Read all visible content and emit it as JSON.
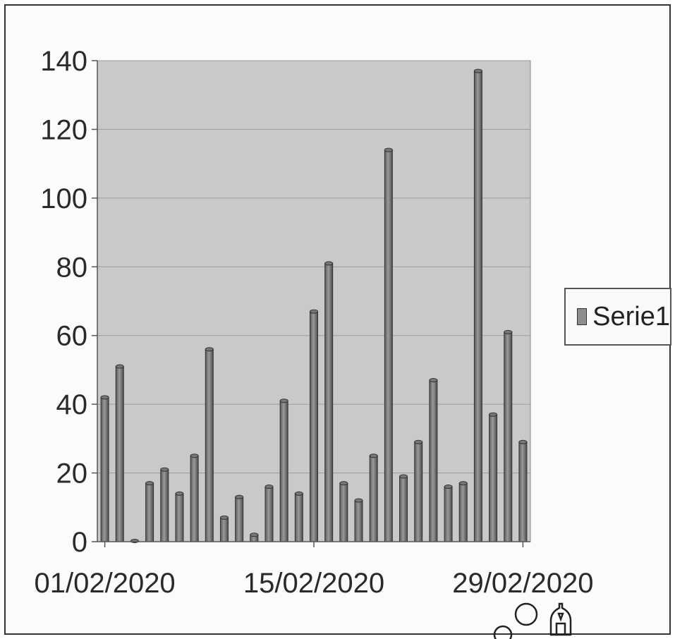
{
  "chart_data": {
    "type": "bar",
    "x": [
      "01/02/2020",
      "02/02/2020",
      "03/02/2020",
      "04/02/2020",
      "05/02/2020",
      "06/02/2020",
      "07/02/2020",
      "08/02/2020",
      "09/02/2020",
      "10/02/2020",
      "11/02/2020",
      "12/02/2020",
      "13/02/2020",
      "14/02/2020",
      "15/02/2020",
      "16/02/2020",
      "17/02/2020",
      "18/02/2020",
      "19/02/2020",
      "20/02/2020",
      "21/02/2020",
      "22/02/2020",
      "23/02/2020",
      "24/02/2020",
      "25/02/2020",
      "26/02/2020",
      "27/02/2020",
      "28/02/2020",
      "29/02/2020"
    ],
    "x_tick_labels": [
      "01/02/2020",
      "15/02/2020",
      "29/02/2020"
    ],
    "series": [
      {
        "name": "Serie1",
        "values": [
          42,
          51,
          0,
          17,
          21,
          14,
          25,
          56,
          7,
          13,
          2,
          16,
          41,
          14,
          67,
          81,
          17,
          12,
          25,
          114,
          19,
          29,
          47,
          16,
          17,
          137,
          37,
          61,
          29
        ]
      }
    ],
    "ylim": [
      0,
      140
    ],
    "yticks": [
      0,
      20,
      40,
      60,
      80,
      100,
      120,
      140
    ],
    "grid": true,
    "legend": "right",
    "colors": {
      "bar": "#8a8a8a",
      "bar_dark": "#4a4a4a",
      "plot_bg": "#c9c9c9"
    }
  }
}
